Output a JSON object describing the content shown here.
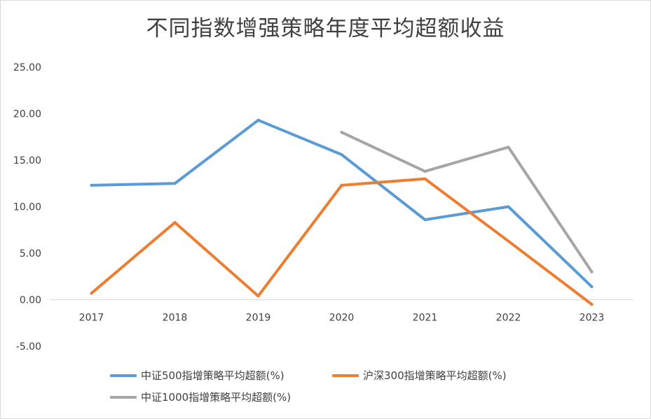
{
  "chart_data": {
    "type": "line",
    "title": "不同指数增强策略年度平均超额收益",
    "xlabel": "",
    "ylabel": "",
    "categories": [
      "2017",
      "2018",
      "2019",
      "2020",
      "2021",
      "2022",
      "2023"
    ],
    "y_ticks": [
      "25.00",
      "20.00",
      "15.00",
      "10.00",
      "5.00",
      "0.00",
      "-5.00"
    ],
    "ylim": [
      -5,
      25
    ],
    "grid": false,
    "legend_position": "bottom",
    "series": [
      {
        "name": "中证500指增策略平均超额(%)",
        "color": "#5b9bd5",
        "values": [
          12.3,
          12.5,
          19.3,
          15.6,
          8.6,
          10.0,
          1.4
        ]
      },
      {
        "name": "沪深300指增策略平均超额(%)",
        "color": "#ed7d31",
        "values": [
          0.7,
          8.3,
          0.4,
          12.3,
          13.0,
          6.3,
          -0.5
        ]
      },
      {
        "name": "中证1000指增策略平均超额(%)",
        "color": "#a5a5a5",
        "values": [
          null,
          null,
          null,
          18.0,
          13.8,
          16.4,
          3.0
        ]
      }
    ]
  }
}
